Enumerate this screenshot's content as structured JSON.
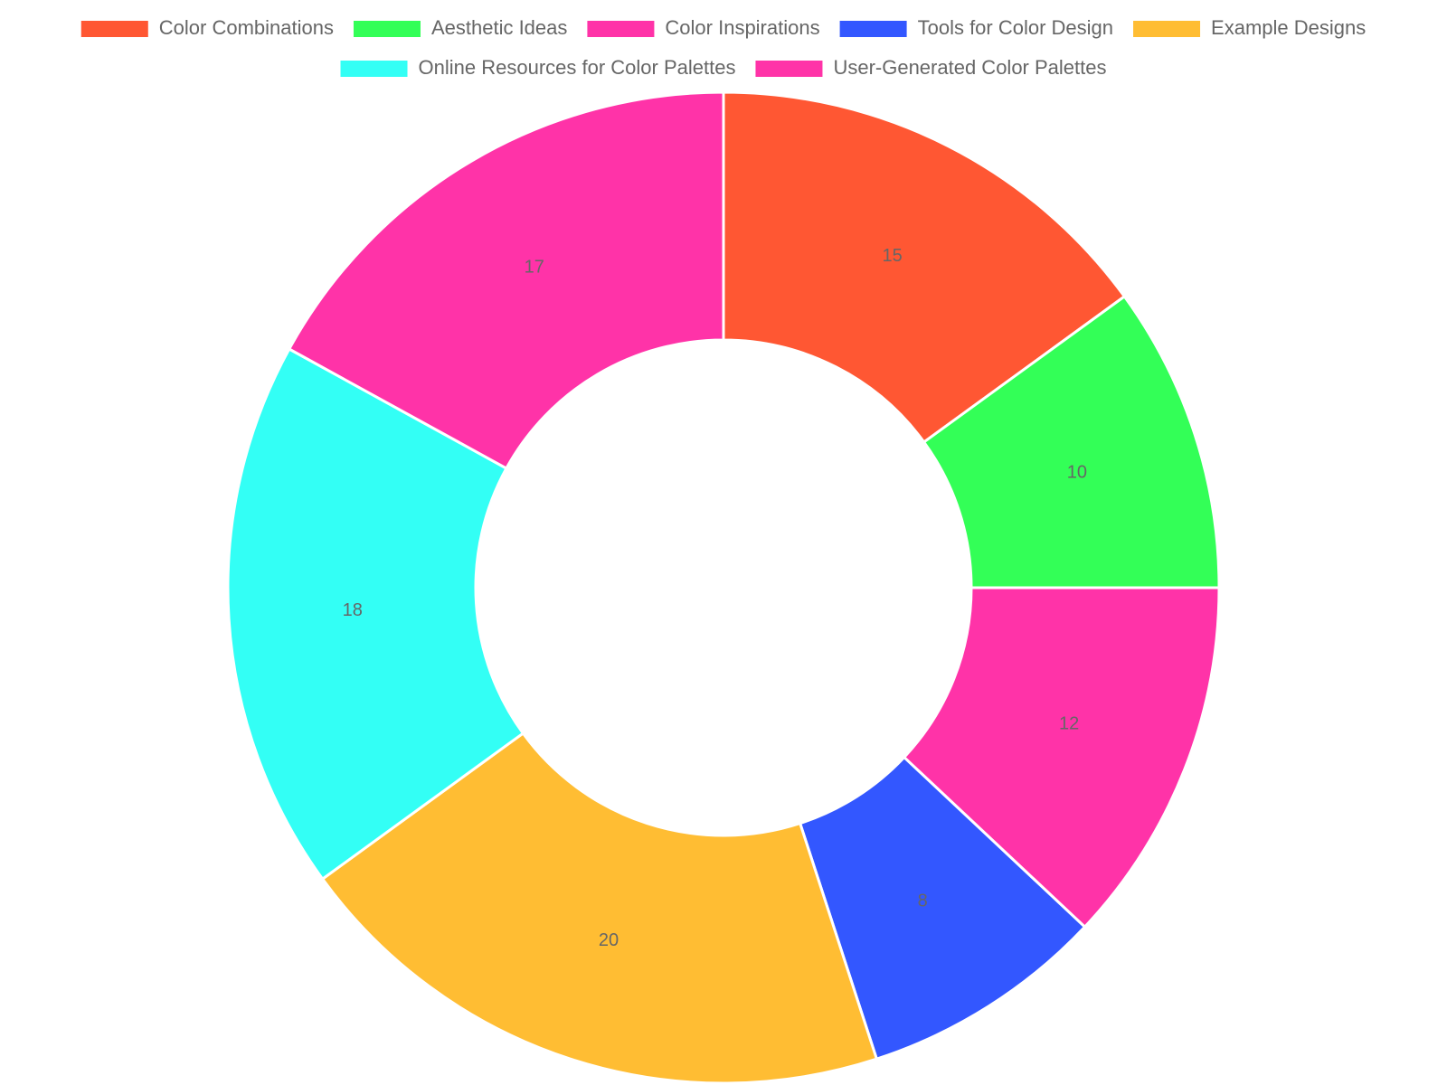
{
  "chart_data": {
    "type": "doughnut",
    "categories": [
      "Color Combinations",
      "Aesthetic Ideas",
      "Color Inspirations",
      "Tools for Color Design",
      "Example Designs",
      "Online Resources for Color Palettes",
      "User-Generated Color Palettes"
    ],
    "values": [
      15,
      10,
      12,
      8,
      20,
      18,
      17
    ],
    "colors": [
      "#FF5733",
      "#33FF57",
      "#FF33A8",
      "#3357FF",
      "#FFBD33",
      "#33FFF5",
      "#FF33A8"
    ],
    "legend": "top"
  }
}
